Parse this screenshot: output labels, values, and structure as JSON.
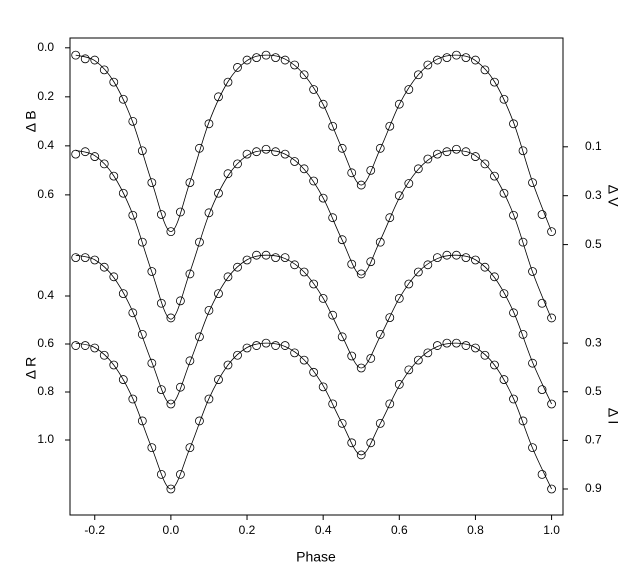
{
  "chart_data": {
    "type": "scatter",
    "x_label": "Phase",
    "xlim": [
      -0.265,
      1.03
    ],
    "xticks": [
      -0.2,
      {
        "value": 0,
        "label": "0.0"
      },
      0.2,
      0.4,
      0.6,
      0.8,
      {
        "value": 1,
        "label": "1.0"
      }
    ],
    "x": [
      -0.25,
      -0.225,
      -0.2,
      -0.175,
      -0.15,
      -0.125,
      -0.1,
      -0.075,
      -0.05,
      -0.025,
      0,
      0.025,
      0.05,
      0.075,
      0.1,
      0.125,
      0.15,
      0.175,
      0.2,
      0.225,
      0.25,
      0.275,
      0.3,
      0.325,
      0.35,
      0.375,
      0.4,
      0.425,
      0.45,
      0.475,
      0.5,
      0.525,
      0.55,
      0.575,
      0.6,
      0.625,
      0.65,
      0.675,
      0.7,
      0.725,
      0.75,
      0.775,
      0.8,
      0.825,
      0.85,
      0.875,
      0.9,
      0.925,
      0.95,
      0.975,
      1
    ],
    "fit_x": [
      -0.25,
      -0.2,
      -0.15,
      -0.1,
      -0.05,
      0,
      0.05,
      0.1,
      0.15,
      0.2,
      0.25,
      0.3,
      0.35,
      0.4,
      0.45,
      0.5,
      0.55,
      0.6,
      0.65,
      0.7,
      0.75,
      0.8,
      0.85,
      0.9,
      0.95,
      1
    ],
    "marker_color": "#000000",
    "series": [
      {
        "ylabel": "Δ B",
        "axis": "y",
        "ylim": [
          1.906,
          -0.04
        ],
        "yticks": [
          {
            "value": 0,
            "label": "0.0"
          },
          0.2,
          0.4,
          0.6
        ],
        "values": [
          0.03,
          0.045,
          0.05,
          0.09,
          0.14,
          0.21,
          0.3,
          0.42,
          0.55,
          0.68,
          0.75,
          0.67,
          0.55,
          0.41,
          0.31,
          0.2,
          0.14,
          0.08,
          0.05,
          0.04,
          0.03,
          0.04,
          0.05,
          0.07,
          0.11,
          0.17,
          0.23,
          0.32,
          0.41,
          0.51,
          0.56,
          0.5,
          0.41,
          0.32,
          0.23,
          0.17,
          0.11,
          0.07,
          0.05,
          0.04,
          0.03,
          0.04,
          0.05,
          0.09,
          0.14,
          0.21,
          0.31,
          0.42,
          0.55,
          0.68,
          0.75
        ],
        "fit": [
          0.03,
          0.052,
          0.138,
          0.304,
          0.548,
          0.75,
          0.548,
          0.304,
          0.138,
          0.052,
          0.03,
          0.046,
          0.11,
          0.231,
          0.412,
          0.56,
          0.412,
          0.231,
          0.11,
          0.046,
          0.03,
          0.052,
          0.138,
          0.304,
          0.548,
          0.75
        ]
      },
      {
        "ylabel": "Δ V",
        "axis": "y2",
        "ylim": [
          1.606,
          -0.345
        ],
        "yticks": [
          0.1,
          0.3,
          0.5
        ],
        "values": [
          0.13,
          0.12,
          0.14,
          0.17,
          0.22,
          0.29,
          0.38,
          0.49,
          0.61,
          0.74,
          0.8,
          0.73,
          0.62,
          0.49,
          0.37,
          0.29,
          0.21,
          0.17,
          0.13,
          0.12,
          0.11,
          0.12,
          0.13,
          0.16,
          0.19,
          0.24,
          0.31,
          0.39,
          0.48,
          0.58,
          0.62,
          0.57,
          0.49,
          0.39,
          0.3,
          0.25,
          0.19,
          0.15,
          0.13,
          0.12,
          0.11,
          0.12,
          0.14,
          0.17,
          0.22,
          0.29,
          0.38,
          0.49,
          0.61,
          0.74,
          0.8
        ],
        "fit": [
          0.115,
          0.136,
          0.219,
          0.377,
          0.612,
          0.805,
          0.612,
          0.377,
          0.219,
          0.136,
          0.115,
          0.13,
          0.192,
          0.309,
          0.482,
          0.625,
          0.482,
          0.309,
          0.192,
          0.13,
          0.115,
          0.136,
          0.219,
          0.377,
          0.612,
          0.805
        ]
      },
      {
        "ylabel": "Δ R",
        "axis": "y",
        "ylim": [
          1.3125,
          -0.675
        ],
        "yticks": [
          0.4,
          0.6,
          0.8,
          {
            "value": 1,
            "label": "1.0"
          }
        ],
        "values": [
          0.24,
          0.24,
          0.25,
          0.28,
          0.32,
          0.39,
          0.47,
          0.56,
          0.68,
          0.79,
          0.85,
          0.78,
          0.67,
          0.57,
          0.46,
          0.39,
          0.32,
          0.28,
          0.25,
          0.23,
          0.23,
          0.24,
          0.24,
          0.27,
          0.3,
          0.35,
          0.41,
          0.48,
          0.57,
          0.65,
          0.7,
          0.66,
          0.56,
          0.49,
          0.41,
          0.35,
          0.3,
          0.27,
          0.24,
          0.23,
          0.23,
          0.24,
          0.25,
          0.28,
          0.32,
          0.39,
          0.47,
          0.56,
          0.68,
          0.79,
          0.85
        ],
        "fit": [
          0.23,
          0.249,
          0.323,
          0.466,
          0.676,
          0.85,
          0.676,
          0.466,
          0.323,
          0.249,
          0.23,
          0.244,
          0.3,
          0.409,
          0.568,
          0.7,
          0.568,
          0.409,
          0.3,
          0.244,
          0.23,
          0.249,
          0.323,
          0.466,
          0.676,
          0.85
        ]
      },
      {
        "ylabel": "Δ I",
        "axis": "y2",
        "ylim": [
          1.007,
          -0.955
        ],
        "yticks": [
          0.3,
          0.5,
          0.7,
          0.9
        ],
        "values": [
          0.31,
          0.31,
          0.32,
          0.35,
          0.39,
          0.45,
          0.53,
          0.62,
          0.73,
          0.84,
          0.9,
          0.84,
          0.73,
          0.62,
          0.53,
          0.45,
          0.39,
          0.35,
          0.32,
          0.31,
          0.3,
          0.31,
          0.31,
          0.34,
          0.37,
          0.42,
          0.48,
          0.55,
          0.63,
          0.71,
          0.76,
          0.71,
          0.63,
          0.55,
          0.47,
          0.41,
          0.37,
          0.34,
          0.31,
          0.3,
          0.3,
          0.31,
          0.32,
          0.35,
          0.39,
          0.45,
          0.53,
          0.62,
          0.73,
          0.84,
          0.9
        ],
        "fit": [
          0.3,
          0.318,
          0.39,
          0.528,
          0.732,
          0.9,
          0.732,
          0.528,
          0.39,
          0.318,
          0.3,
          0.314,
          0.369,
          0.475,
          0.631,
          0.76,
          0.631,
          0.475,
          0.369,
          0.314,
          0.3,
          0.318,
          0.39,
          0.528,
          0.732,
          0.9
        ]
      }
    ]
  }
}
